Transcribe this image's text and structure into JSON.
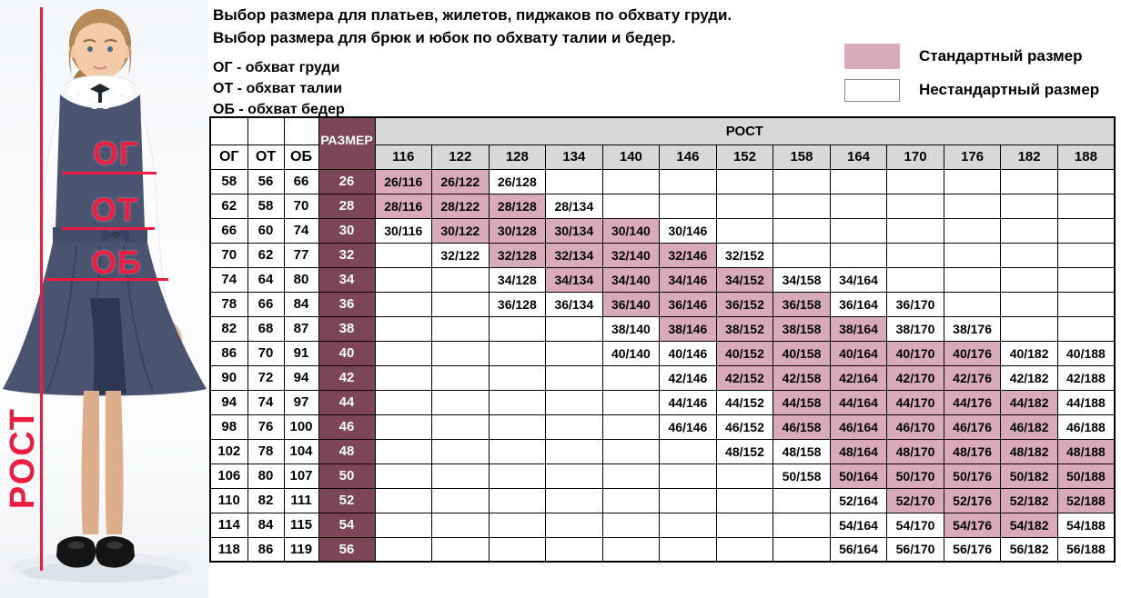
{
  "title": {
    "line1": "Выбор размера для платьев, жилетов, пиджаков по обхвату груди.",
    "line2": "Выбор размера для брюк и юбок по обхвату талии и бедер."
  },
  "abbreviations": {
    "chest": "ОГ - обхват груди",
    "waist": "ОТ - обхват талии",
    "hips": "ОБ - обхват бедер"
  },
  "legend": {
    "standard_label": "Стандартный размер",
    "nonstandard_label": "Нестандартный размер",
    "standard_color": "#d9abba",
    "nonstandard_color": "#ffffff"
  },
  "figure": {
    "chest_label": "ОГ",
    "waist_label": "ОТ",
    "hips_label": "ОБ",
    "height_label": "РОСТ",
    "accent_color": "#ed1c40"
  },
  "colors": {
    "size_column": "#7d4656",
    "standard_cell": "#d9abba",
    "header_gray": "#d8d8d8",
    "border": "#000000"
  },
  "table": {
    "corner_headers": [
      "ОГ",
      "ОТ",
      "ОБ",
      "РАЗМЕР"
    ],
    "group_header": "РОСТ",
    "heights": [
      116,
      122,
      128,
      134,
      140,
      146,
      152,
      158,
      164,
      170,
      176,
      182,
      188
    ],
    "cell_legend": {
      "S": "standard",
      "N": "nonstandard",
      "": "empty"
    },
    "rows": [
      {
        "og": 58,
        "ot": 56,
        "ob": 66,
        "size": 26,
        "cells": [
          "S",
          "S",
          "N",
          "",
          "",
          "",
          "",
          "",
          "",
          "",
          "",
          "",
          ""
        ]
      },
      {
        "og": 62,
        "ot": 58,
        "ob": 70,
        "size": 28,
        "cells": [
          "S",
          "S",
          "S",
          "N",
          "",
          "",
          "",
          "",
          "",
          "",
          "",
          "",
          ""
        ]
      },
      {
        "og": 66,
        "ot": 60,
        "ob": 74,
        "size": 30,
        "cells": [
          "N",
          "S",
          "S",
          "S",
          "S",
          "N",
          "",
          "",
          "",
          "",
          "",
          "",
          ""
        ]
      },
      {
        "og": 70,
        "ot": 62,
        "ob": 77,
        "size": 32,
        "cells": [
          "",
          "N",
          "S",
          "S",
          "S",
          "S",
          "N",
          "",
          "",
          "",
          "",
          "",
          ""
        ]
      },
      {
        "og": 74,
        "ot": 64,
        "ob": 80,
        "size": 34,
        "cells": [
          "",
          "",
          "N",
          "S",
          "S",
          "S",
          "S",
          "N",
          "N",
          "",
          "",
          "",
          ""
        ]
      },
      {
        "og": 78,
        "ot": 66,
        "ob": 84,
        "size": 36,
        "cells": [
          "",
          "",
          "N",
          "N",
          "S",
          "S",
          "S",
          "S",
          "N",
          "N",
          "",
          "",
          ""
        ]
      },
      {
        "og": 82,
        "ot": 68,
        "ob": 87,
        "size": 38,
        "cells": [
          "",
          "",
          "",
          "",
          "N",
          "S",
          "S",
          "S",
          "S",
          "N",
          "N",
          "",
          ""
        ]
      },
      {
        "og": 86,
        "ot": 70,
        "ob": 91,
        "size": 40,
        "cells": [
          "",
          "",
          "",
          "",
          "N",
          "N",
          "S",
          "S",
          "S",
          "S",
          "S",
          "N",
          "N"
        ]
      },
      {
        "og": 90,
        "ot": 72,
        "ob": 94,
        "size": 42,
        "cells": [
          "",
          "",
          "",
          "",
          "",
          "N",
          "S",
          "S",
          "S",
          "S",
          "S",
          "N",
          "N"
        ]
      },
      {
        "og": 94,
        "ot": 74,
        "ob": 97,
        "size": 44,
        "cells": [
          "",
          "",
          "",
          "",
          "",
          "N",
          "N",
          "S",
          "S",
          "S",
          "S",
          "S",
          "N"
        ]
      },
      {
        "og": 98,
        "ot": 76,
        "ob": 100,
        "size": 46,
        "cells": [
          "",
          "",
          "",
          "",
          "",
          "N",
          "N",
          "S",
          "S",
          "S",
          "S",
          "S",
          "N"
        ]
      },
      {
        "og": 102,
        "ot": 78,
        "ob": 104,
        "size": 48,
        "cells": [
          "",
          "",
          "",
          "",
          "",
          "",
          "N",
          "N",
          "S",
          "S",
          "S",
          "S",
          "S"
        ]
      },
      {
        "og": 106,
        "ot": 80,
        "ob": 107,
        "size": 50,
        "cells": [
          "",
          "",
          "",
          "",
          "",
          "",
          "",
          "N",
          "S",
          "S",
          "S",
          "S",
          "S"
        ]
      },
      {
        "og": 110,
        "ot": 82,
        "ob": 111,
        "size": 52,
        "cells": [
          "",
          "",
          "",
          "",
          "",
          "",
          "",
          "",
          "N",
          "S",
          "S",
          "S",
          "S"
        ]
      },
      {
        "og": 114,
        "ot": 84,
        "ob": 115,
        "size": 54,
        "cells": [
          "",
          "",
          "",
          "",
          "",
          "",
          "",
          "",
          "N",
          "N",
          "S",
          "S",
          "N"
        ]
      },
      {
        "og": 118,
        "ot": 86,
        "ob": 119,
        "size": 56,
        "cells": [
          "",
          "",
          "",
          "",
          "",
          "",
          "",
          "",
          "N",
          "N",
          "N",
          "N",
          "N"
        ]
      }
    ]
  }
}
